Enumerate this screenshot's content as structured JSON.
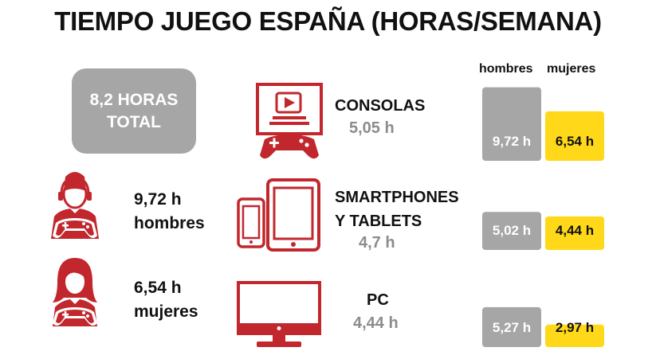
{
  "title": "TIEMPO JUEGO ESPAÑA (HORAS/SEMANA)",
  "total": {
    "line1": "8,2 HORAS",
    "line2": "TOTAL"
  },
  "men": {
    "value": "9,72 h",
    "label": "hombres"
  },
  "women": {
    "value": "6,54 h",
    "label": "mujeres"
  },
  "categories": [
    {
      "line1": "CONSOLAS",
      "line2": "",
      "total": "5,05 h"
    },
    {
      "line1": "SMARTPHONES",
      "line2": "Y TABLETS",
      "total": "4,7 h"
    },
    {
      "line1": "PC",
      "line2": "",
      "total": "4,44 h"
    }
  ],
  "legend": {
    "men": "hombres",
    "women": "mujeres"
  },
  "icons": [
    "man-gamer-icon",
    "woman-gamer-icon",
    "console-icon",
    "smartphone-icon",
    "tablet-icon",
    "monitor-icon"
  ],
  "colors": {
    "men": "#a6a6a6",
    "women": "#ffd819",
    "icon": "#c1272d"
  },
  "chart_data": {
    "type": "bar",
    "title": "TIEMPO JUEGO ESPAÑA (HORAS/SEMANA)",
    "categories": [
      "CONSOLAS",
      "SMARTPHONES Y TABLETS",
      "PC"
    ],
    "series": [
      {
        "name": "hombres",
        "values": [
          9.72,
          5.02,
          5.27
        ],
        "labels": [
          "9,72 h",
          "5,02 h",
          "5,27 h"
        ]
      },
      {
        "name": "mujeres",
        "values": [
          6.54,
          4.44,
          2.97
        ],
        "labels": [
          "6,54 h",
          "4,44 h",
          "2,97 h"
        ]
      }
    ],
    "legend": "top",
    "grid": false
  }
}
